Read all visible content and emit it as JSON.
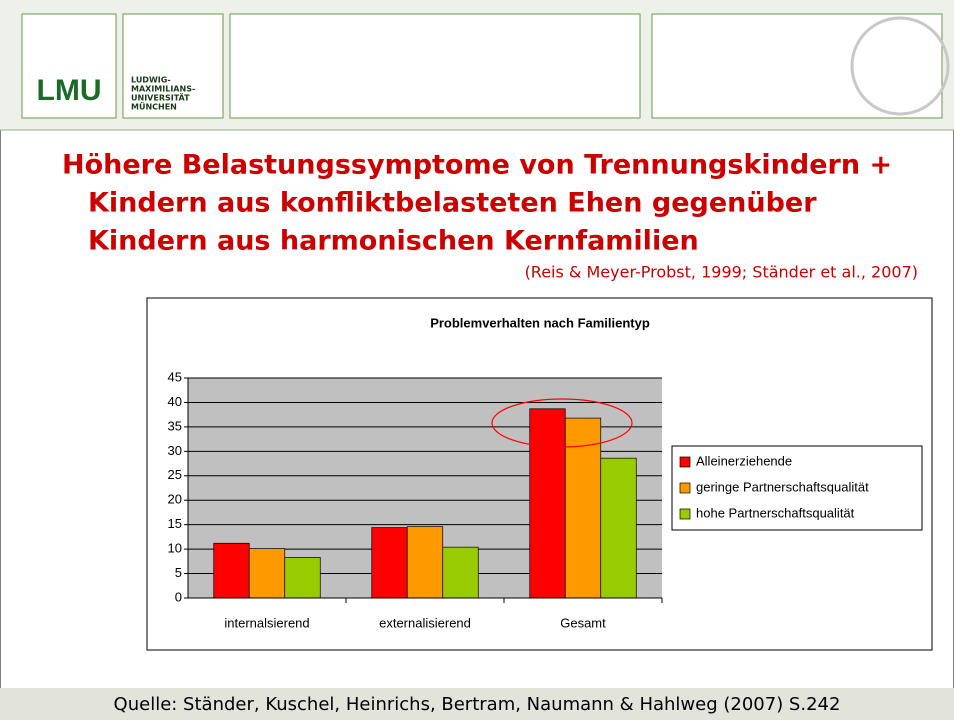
{
  "header": {
    "logo": "LMU",
    "university": [
      "LUDWIG-",
      "MAXIMILIANS-",
      "UNIVERSITÄT",
      "MÜNCHEN"
    ]
  },
  "title": [
    "Höhere Belastungssymptome von Trennungskindern  +",
    "Kindern aus konfliktbelasteten Ehen gegenüber",
    "Kindern aus harmonischen Kernfamilien"
  ],
  "citation": "(Reis & Meyer-Probst, 1999; Ständer et al., 2007)",
  "chart_data": {
    "type": "bar",
    "title": "Problemverhalten nach Familientyp",
    "categories": [
      "internalsierend",
      "externalisierend",
      "Gesamt"
    ],
    "series": [
      {
        "name": "Alleinerziehende",
        "color": "#ff0000",
        "values": [
          11.2,
          14.4,
          38.7
        ]
      },
      {
        "name": "geringe Partnerschaftsqualität",
        "color": "#ff9900",
        "values": [
          10.1,
          14.6,
          36.8
        ]
      },
      {
        "name": "hohe Partnerschaftsqualität",
        "color": "#99cc00",
        "values": [
          8.3,
          10.4,
          28.6
        ]
      }
    ],
    "ylim": [
      0,
      45
    ],
    "yticks": [
      0,
      5,
      10,
      15,
      20,
      25,
      30,
      35,
      40,
      45
    ],
    "grid": true,
    "legend": "right"
  },
  "footer": "Quelle: Ständer, Kuschel, Heinrichs, Bertram, Naumann & Hahlweg (2007) S.242"
}
